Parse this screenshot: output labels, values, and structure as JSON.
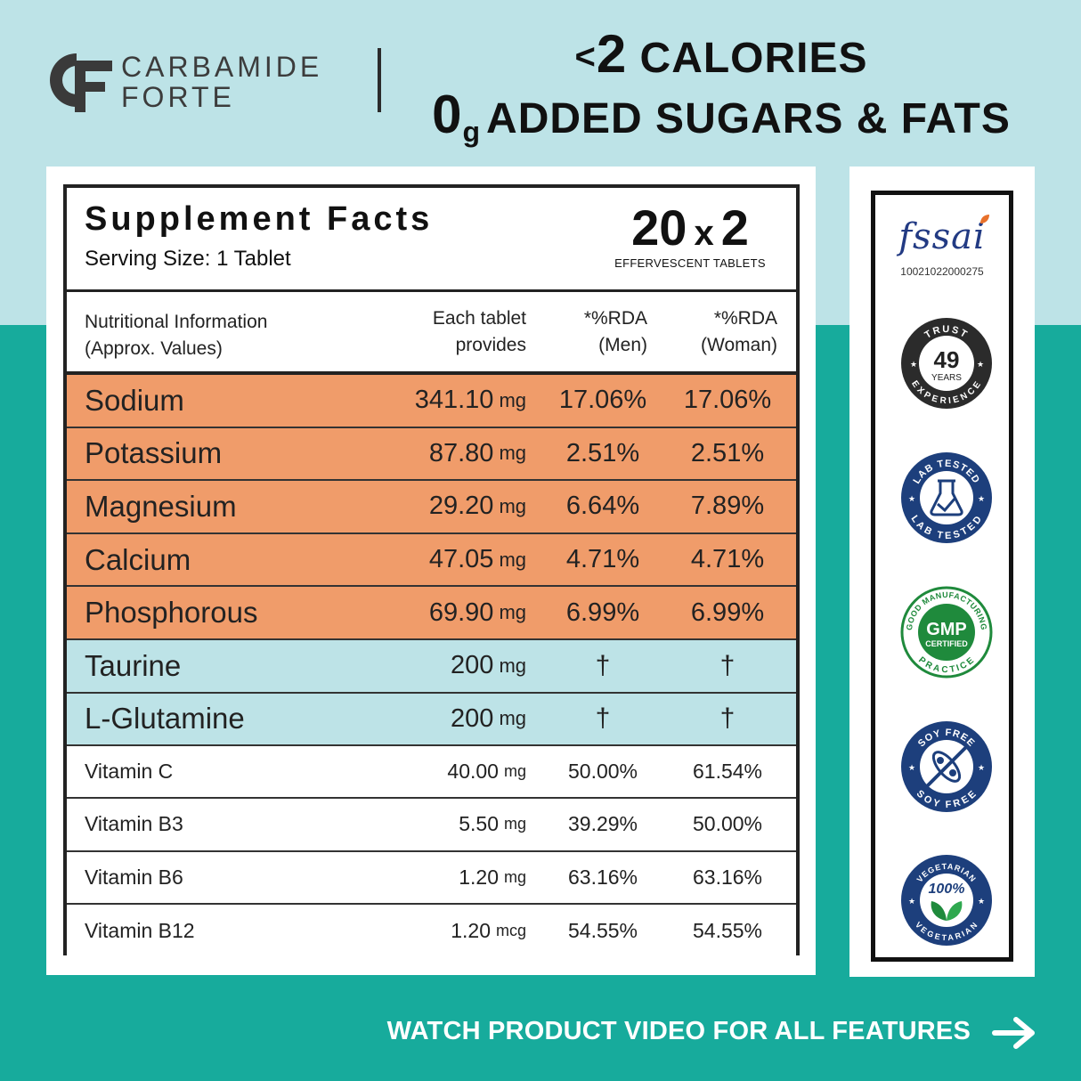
{
  "brand": {
    "line1": "CARBAMIDE",
    "line2": "FORTE"
  },
  "headline": {
    "line1_prefix": "<",
    "line1_number": "2",
    "line1_text": " CALORIES",
    "line2_number": "0",
    "line2_unit": "g",
    "line2_text": "ADDED SUGARS & FATS"
  },
  "facts": {
    "title": "Supplement Facts",
    "serving": "Serving Size: 1 Tablet",
    "pack_a": "20",
    "pack_x": "x",
    "pack_b": "2",
    "pack_label": "EFFERVESCENT TABLETS",
    "col_name_1": "Nutritional Information",
    "col_name_2": "(Approx. Values)",
    "col_each_1": "Each tablet",
    "col_each_2": "provides",
    "col_men_1": "*%RDA",
    "col_men_2": "(Men)",
    "col_woman_1": "*%RDA",
    "col_woman_2": "(Woman)",
    "rows": [
      {
        "name": "Sodium",
        "amount": "341.10",
        "unit": "mg",
        "men": "17.06%",
        "woman": "17.06%"
      },
      {
        "name": "Potassium",
        "amount": "87.80",
        "unit": "mg",
        "men": "2.51%",
        "woman": "2.51%"
      },
      {
        "name": "Magnesium",
        "amount": "29.20",
        "unit": "mg",
        "men": "6.64%",
        "woman": "7.89%"
      },
      {
        "name": "Calcium",
        "amount": "47.05",
        "unit": "mg",
        "men": "4.71%",
        "woman": "4.71%"
      },
      {
        "name": "Phosphorous",
        "amount": "69.90",
        "unit": "mg",
        "men": "6.99%",
        "woman": "6.99%"
      },
      {
        "name": "Taurine",
        "amount": "200",
        "unit": "mg",
        "men": "†",
        "woman": "†"
      },
      {
        "name": "L-Glutamine",
        "amount": "200",
        "unit": "mg",
        "men": "†",
        "woman": "†"
      },
      {
        "name": "Vitamin C",
        "amount": "40.00",
        "unit": "mg",
        "men": "50.00%",
        "woman": "61.54%"
      },
      {
        "name": "Vitamin B3",
        "amount": "5.50",
        "unit": "mg",
        "men": "39.29%",
        "woman": "50.00%"
      },
      {
        "name": "Vitamin B6",
        "amount": "1.20",
        "unit": "mg",
        "men": "63.16%",
        "woman": "63.16%"
      },
      {
        "name": "Vitamin B12",
        "amount": "1.20",
        "unit": "mcg",
        "men": "54.55%",
        "woman": "54.55%"
      }
    ]
  },
  "badges": {
    "fssai_word": "fssai",
    "fssai_number": "10021022000275",
    "trust_top": "TRUST",
    "trust_number": "49",
    "trust_years": "YEARS",
    "trust_bottom": "EXPERIENCE",
    "lab_top": "LAB TESTED",
    "lab_bottom": "LAB TESTED",
    "gmp_top": "GOOD MANUFACTURING",
    "gmp_main": "GMP",
    "gmp_sub": "CERTIFIED",
    "gmp_bottom": "PRACTICE",
    "soy_top": "SOY FREE",
    "soy_bottom": "SOY FREE",
    "veg_top": "VEGETARIAN",
    "veg_main": "100%",
    "veg_bottom": "VEGETARIAN"
  },
  "cta": "WATCH PRODUCT VIDEO FOR ALL FEATURES",
  "colors": {
    "top_band": "#bde3e7",
    "bottom_band": "#17ab9c",
    "mineral_rows": "#f09c6a",
    "amino_rows": "#bde3e7",
    "badge_navy": "#1d3f7c",
    "badge_green": "#1f8a3c"
  }
}
